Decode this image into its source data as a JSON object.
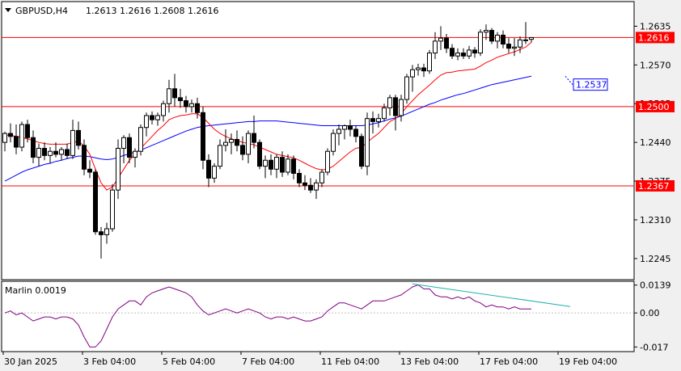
{
  "header": {
    "symbol": "GBPUSD,H4",
    "ohlc": "1.2613 1.2616 1.2608 1.2616",
    "menu_icon": "triangle-down-icon"
  },
  "indicator": {
    "name": "Marlin 0.0019"
  },
  "price_axis": {
    "ticks": [
      "1.2635",
      "1.2570",
      "1.2505",
      "1.2440",
      "1.2375",
      "1.2310",
      "1.2245"
    ],
    "ylim": [
      1.2215,
      1.266
    ]
  },
  "osc_axis": {
    "ticks": [
      "0.0139",
      "0.00",
      "-0.017"
    ],
    "ylim": [
      -0.0185,
      0.015
    ]
  },
  "time_axis": [
    "30 Jan 2025",
    "3 Feb 04:00",
    "5 Feb 04:00",
    "7 Feb 04:00",
    "11 Feb 04:00",
    "13 Feb 04:00",
    "17 Feb 04:00",
    "19 Feb 04:00"
  ],
  "levels": [
    {
      "value": "1.2616",
      "price": 1.2616,
      "color": "#ff0000",
      "tag_bg": "#ff0000",
      "tag_fg": "#ffffff"
    },
    {
      "value": "1.2500",
      "price": 1.25,
      "color": "#ff0000",
      "tag_bg": "#ff0000",
      "tag_fg": "#ffffff"
    },
    {
      "value": "1.2367",
      "price": 1.2367,
      "color": "#ff0000",
      "tag_bg": "#ff0000",
      "tag_fg": "#ffffff"
    }
  ],
  "projection_tag": {
    "value": "1.2537",
    "price": 1.2537,
    "color": "#0000ff",
    "bg": "#ffffff"
  },
  "colors": {
    "background": "#ffffff",
    "up": "#ffffff",
    "down": "#000000",
    "wick": "#000000",
    "ma_fast": "#ff0000",
    "ma_slow": "#0000ff",
    "oscillator": "#800080",
    "divergence": "#20b2aa"
  },
  "chart_data": {
    "type": "candlestick",
    "symbol": "GBPUSD",
    "timeframe": "H4",
    "candles": [
      [
        1.244,
        1.2458,
        1.2425,
        1.2455
      ],
      [
        1.2455,
        1.2472,
        1.244,
        1.245
      ],
      [
        1.245,
        1.247,
        1.242,
        1.2432
      ],
      [
        1.2432,
        1.2475,
        1.2425,
        1.247
      ],
      [
        1.247,
        1.2478,
        1.244,
        1.2448
      ],
      [
        1.2448,
        1.246,
        1.2405,
        1.2415
      ],
      [
        1.2415,
        1.2438,
        1.24,
        1.243
      ],
      [
        1.243,
        1.244,
        1.241,
        1.2418
      ],
      [
        1.2418,
        1.2432,
        1.2405,
        1.2425
      ],
      [
        1.2425,
        1.244,
        1.2415,
        1.242
      ],
      [
        1.242,
        1.2432,
        1.241,
        1.2428
      ],
      [
        1.2428,
        1.2438,
        1.2412,
        1.2418
      ],
      [
        1.2418,
        1.2478,
        1.2412,
        1.246
      ],
      [
        1.246,
        1.2475,
        1.2428,
        1.2435
      ],
      [
        1.2435,
        1.2445,
        1.2385,
        1.2395
      ],
      [
        1.2395,
        1.241,
        1.238,
        1.239
      ],
      [
        1.239,
        1.2395,
        1.2285,
        1.229
      ],
      [
        1.229,
        1.2298,
        1.2245,
        1.2285
      ],
      [
        1.2285,
        1.2305,
        1.227,
        1.2295
      ],
      [
        1.2295,
        1.237,
        1.229,
        1.236
      ],
      [
        1.236,
        1.2445,
        1.2345,
        1.243
      ],
      [
        1.243,
        1.2452,
        1.2405,
        1.2448
      ],
      [
        1.2448,
        1.2455,
        1.2405,
        1.2415
      ],
      [
        1.2415,
        1.243,
        1.2398,
        1.2425
      ],
      [
        1.2425,
        1.247,
        1.2418,
        1.2465
      ],
      [
        1.2465,
        1.249,
        1.245,
        1.2485
      ],
      [
        1.2485,
        1.2492,
        1.247,
        1.2478
      ],
      [
        1.2478,
        1.249,
        1.2468,
        1.2485
      ],
      [
        1.2485,
        1.251,
        1.2475,
        1.2505
      ],
      [
        1.2505,
        1.2545,
        1.249,
        1.253
      ],
      [
        1.253,
        1.2555,
        1.25,
        1.2515
      ],
      [
        1.2515,
        1.253,
        1.2498,
        1.251
      ],
      [
        1.251,
        1.2518,
        1.249,
        1.25
      ],
      [
        1.25,
        1.2512,
        1.249,
        1.2505
      ],
      [
        1.2505,
        1.2515,
        1.248,
        1.249
      ],
      [
        1.249,
        1.25,
        1.2395,
        1.241
      ],
      [
        1.241,
        1.242,
        1.2365,
        1.238
      ],
      [
        1.238,
        1.2405,
        1.2372,
        1.24
      ],
      [
        1.24,
        1.2445,
        1.2395,
        1.2435
      ],
      [
        1.2435,
        1.2462,
        1.2425,
        1.244
      ],
      [
        1.244,
        1.2455,
        1.242,
        1.2445
      ],
      [
        1.2445,
        1.246,
        1.2425,
        1.2435
      ],
      [
        1.2435,
        1.245,
        1.241,
        1.242
      ],
      [
        1.242,
        1.246,
        1.2405,
        1.2455
      ],
      [
        1.2455,
        1.2485,
        1.243,
        1.244
      ],
      [
        1.244,
        1.2445,
        1.2395,
        1.24
      ],
      [
        1.24,
        1.2418,
        1.238,
        1.241
      ],
      [
        1.241,
        1.242,
        1.2385,
        1.2395
      ],
      [
        1.2395,
        1.242,
        1.238,
        1.2415
      ],
      [
        1.2415,
        1.2425,
        1.2382,
        1.239
      ],
      [
        1.239,
        1.242,
        1.2385,
        1.2412
      ],
      [
        1.2412,
        1.2418,
        1.2378,
        1.2388
      ],
      [
        1.2388,
        1.2395,
        1.2365,
        1.2372
      ],
      [
        1.2372,
        1.2385,
        1.236,
        1.2368
      ],
      [
        1.2368,
        1.238,
        1.2355,
        1.236
      ],
      [
        1.236,
        1.2378,
        1.2345,
        1.2372
      ],
      [
        1.2372,
        1.2395,
        1.2365,
        1.239
      ],
      [
        1.239,
        1.243,
        1.2385,
        1.2425
      ],
      [
        1.2425,
        1.2462,
        1.2418,
        1.2455
      ],
      [
        1.2455,
        1.247,
        1.2435,
        1.2462
      ],
      [
        1.2462,
        1.247,
        1.2445,
        1.2468
      ],
      [
        1.2468,
        1.2478,
        1.245,
        1.2462
      ],
      [
        1.2462,
        1.2468,
        1.244,
        1.245
      ],
      [
        1.245,
        1.2455,
        1.2395,
        1.24
      ],
      [
        1.24,
        1.249,
        1.2385,
        1.248
      ],
      [
        1.248,
        1.2492,
        1.2455,
        1.2475
      ],
      [
        1.2475,
        1.2488,
        1.2465,
        1.248
      ],
      [
        1.248,
        1.2505,
        1.2475,
        1.2498
      ],
      [
        1.2498,
        1.252,
        1.2485,
        1.2515
      ],
      [
        1.2515,
        1.252,
        1.246,
        1.2485
      ],
      [
        1.2485,
        1.252,
        1.2475,
        1.2512
      ],
      [
        1.2512,
        1.2555,
        1.2505,
        1.255
      ],
      [
        1.255,
        1.257,
        1.2525,
        1.2562
      ],
      [
        1.2562,
        1.2572,
        1.2552,
        1.2565
      ],
      [
        1.2565,
        1.2572,
        1.255,
        1.256
      ],
      [
        1.256,
        1.2595,
        1.2555,
        1.259
      ],
      [
        1.259,
        1.2625,
        1.258,
        1.261
      ],
      [
        1.261,
        1.2635,
        1.2595,
        1.2615
      ],
      [
        1.2615,
        1.2622,
        1.259,
        1.2598
      ],
      [
        1.2598,
        1.2605,
        1.258,
        1.2585
      ],
      [
        1.2585,
        1.2598,
        1.2578,
        1.259
      ],
      [
        1.259,
        1.2598,
        1.258,
        1.2585
      ],
      [
        1.2585,
        1.2602,
        1.258,
        1.2595
      ],
      [
        1.2595,
        1.26,
        1.2582,
        1.259
      ],
      [
        1.259,
        1.263,
        1.2585,
        1.2625
      ],
      [
        1.2625,
        1.2638,
        1.2612,
        1.2628
      ],
      [
        1.2628,
        1.2632,
        1.2605,
        1.261
      ],
      [
        1.261,
        1.2625,
        1.2598,
        1.262
      ],
      [
        1.262,
        1.2628,
        1.2598,
        1.2605
      ],
      [
        1.2605,
        1.2615,
        1.259,
        1.2598
      ],
      [
        1.2598,
        1.2615,
        1.2585,
        1.26
      ],
      [
        1.26,
        1.2618,
        1.259,
        1.2612
      ],
      [
        1.2612,
        1.2642,
        1.2605,
        1.2612
      ],
      [
        1.2613,
        1.2616,
        1.2608,
        1.2616
      ]
    ],
    "ma_fast": [
      1.2452,
      1.2452,
      1.245,
      1.2448,
      1.2446,
      1.2443,
      1.244,
      1.2438,
      1.2437,
      1.2437,
      1.2437,
      1.2437,
      1.244,
      1.2442,
      1.2434,
      1.242,
      1.2395,
      1.2372,
      1.236,
      1.2365,
      1.238,
      1.2395,
      1.241,
      1.242,
      1.243,
      1.244,
      1.245,
      1.246,
      1.2468,
      1.2478,
      1.2482,
      1.2485,
      1.2486,
      1.2488,
      1.2488,
      1.2482,
      1.2472,
      1.2462,
      1.2455,
      1.245,
      1.2446,
      1.2443,
      1.244,
      1.2438,
      1.2436,
      1.2432,
      1.2428,
      1.2424,
      1.242,
      1.2418,
      1.2416,
      1.2414,
      1.241,
      1.2405,
      1.24,
      1.2396,
      1.2394,
      1.2395,
      1.24,
      1.2408,
      1.2416,
      1.2424,
      1.243,
      1.2432,
      1.244,
      1.2448,
      1.2455,
      1.2465,
      1.2475,
      1.248,
      1.2488,
      1.25,
      1.251,
      1.252,
      1.2528,
      1.2536,
      1.2545,
      1.2553,
      1.2557,
      1.2558,
      1.256,
      1.2561,
      1.2562,
      1.2563,
      1.2568,
      1.2574,
      1.2578,
      1.2583,
      1.2586,
      1.2589,
      1.2592,
      1.2596,
      1.26,
      1.2608
    ],
    "ma_slow": [
      1.2375,
      1.238,
      1.2385,
      1.239,
      1.2394,
      1.2397,
      1.24,
      1.2403,
      1.2405,
      1.2408,
      1.241,
      1.2413,
      1.2415,
      1.2417,
      1.2417,
      1.2416,
      1.2414,
      1.2412,
      1.2411,
      1.2412,
      1.2415,
      1.2418,
      1.2421,
      1.2424,
      1.2427,
      1.2431,
      1.2435,
      1.2439,
      1.2443,
      1.2447,
      1.2451,
      1.2455,
      1.2459,
      1.2462,
      1.2465,
      1.2467,
      1.2468,
      1.2469,
      1.247,
      1.2471,
      1.2472,
      1.2473,
      1.2474,
      1.2475,
      1.2475,
      1.2476,
      1.2476,
      1.2476,
      1.2476,
      1.2475,
      1.2474,
      1.2473,
      1.2472,
      1.2471,
      1.247,
      1.2469,
      1.2468,
      1.2468,
      1.2468,
      1.2468,
      1.2468,
      1.2468,
      1.2468,
      1.2468,
      1.2469,
      1.2471,
      1.2473,
      1.2476,
      1.2479,
      1.2481,
      1.2484,
      1.2488,
      1.2492,
      1.2496,
      1.25,
      1.2504,
      1.2507,
      1.2511,
      1.2514,
      1.2517,
      1.252,
      1.2522,
      1.2525,
      1.2528,
      1.2531,
      1.2534,
      1.2537,
      1.2539,
      1.2541,
      1.2543,
      1.2545,
      1.2547,
      1.2549,
      1.2551
    ],
    "oscillator": [
      0.0,
      0.001,
      -0.001,
      0.0,
      -0.002,
      -0.004,
      -0.003,
      -0.002,
      -0.002,
      -0.003,
      -0.002,
      -0.002,
      -0.003,
      -0.006,
      -0.012,
      -0.017,
      -0.017,
      -0.014,
      -0.008,
      -0.002,
      0.002,
      0.004,
      0.006,
      0.006,
      0.004,
      0.008,
      0.01,
      0.011,
      0.012,
      0.013,
      0.012,
      0.011,
      0.01,
      0.008,
      0.004,
      0.001,
      -0.001,
      0.0,
      0.001,
      0.002,
      0.001,
      0.0,
      0.001,
      0.002,
      0.001,
      0.0,
      -0.002,
      -0.003,
      -0.002,
      -0.002,
      -0.003,
      -0.002,
      -0.003,
      -0.004,
      -0.004,
      -0.003,
      -0.002,
      0.001,
      0.003,
      0.005,
      0.005,
      0.004,
      0.003,
      0.002,
      0.004,
      0.006,
      0.006,
      0.006,
      0.007,
      0.008,
      0.009,
      0.011,
      0.013,
      0.014,
      0.012,
      0.012,
      0.009,
      0.008,
      0.008,
      0.007,
      0.008,
      0.007,
      0.008,
      0.006,
      0.005,
      0.003,
      0.004,
      0.003,
      0.003,
      0.002,
      0.003,
      0.002,
      0.002,
      0.002
    ],
    "divergence_line": {
      "from_index": 72,
      "from_value": 0.0145,
      "to_index": 99,
      "to_value": 0.0032
    },
    "projection": {
      "from_index": 93,
      "to_index": 99
    }
  }
}
